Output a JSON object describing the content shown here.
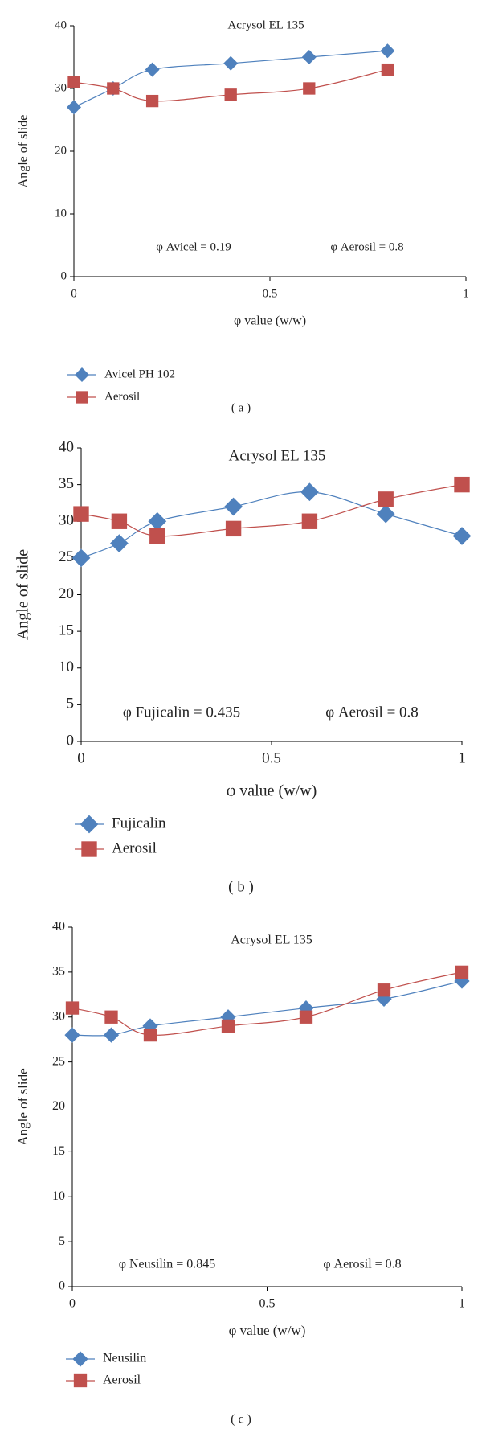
{
  "chart_data": [
    {
      "type": "line",
      "title": "Acrysol EL 135",
      "x_label": "φ value (w/w)",
      "y_label": "Angle of slide",
      "annotations": [
        "φ Avicel = 0.19",
        "φ Aerosil = 0.8"
      ],
      "caption": "( a )",
      "xlim": [
        0,
        1
      ],
      "xticks": [
        0,
        0.5,
        1
      ],
      "ylim": [
        0,
        40
      ],
      "yticks": [
        0,
        10,
        20,
        30,
        40
      ],
      "x": [
        0,
        0.1,
        0.2,
        0.4,
        0.6,
        0.8
      ],
      "series": [
        {
          "name": "Avicel PH 102",
          "color": "#4f81bd",
          "marker": "diamond",
          "values": [
            27,
            30,
            33,
            34,
            35,
            36
          ]
        },
        {
          "name": "Aerosil",
          "color": "#c0504d",
          "marker": "square",
          "values": [
            31,
            30,
            28,
            29,
            30,
            33
          ]
        }
      ]
    },
    {
      "type": "line",
      "title": "Acrysol EL 135",
      "x_label": "φ value (w/w)",
      "y_label": "Angle of slide",
      "annotations": [
        "φ Fujicalin = 0.435",
        "φ Aerosil = 0.8"
      ],
      "caption": "( b )",
      "xlim": [
        0,
        1
      ],
      "xticks": [
        0,
        0.5,
        1
      ],
      "ylim": [
        0,
        40
      ],
      "yticks": [
        0,
        5,
        10,
        15,
        20,
        25,
        30,
        35,
        40
      ],
      "x": [
        0,
        0.1,
        0.2,
        0.4,
        0.6,
        0.8,
        1
      ],
      "series": [
        {
          "name": "Fujicalin",
          "color": "#4f81bd",
          "marker": "diamond",
          "values": [
            25,
            27,
            30,
            32,
            34,
            31,
            28
          ]
        },
        {
          "name": "Aerosil",
          "color": "#c0504d",
          "marker": "square",
          "values": [
            31,
            30,
            28,
            29,
            30,
            33,
            35
          ]
        }
      ]
    },
    {
      "type": "line",
      "title": "Acrysol EL 135",
      "x_label": "φ value (w/w)",
      "y_label": "Angle of slide",
      "annotations": [
        "φ Neusilin = 0.845",
        "φ Aerosil = 0.8"
      ],
      "caption": "( c )",
      "xlim": [
        0,
        1
      ],
      "xticks": [
        0,
        0.5,
        1
      ],
      "ylim": [
        0,
        40
      ],
      "yticks": [
        0,
        5,
        10,
        15,
        20,
        25,
        30,
        35,
        40
      ],
      "x": [
        0,
        0.1,
        0.2,
        0.4,
        0.6,
        0.8,
        1
      ],
      "series": [
        {
          "name": "Neusilin",
          "color": "#4f81bd",
          "marker": "diamond",
          "values": [
            28,
            28,
            29,
            30,
            31,
            32,
            34
          ]
        },
        {
          "name": "Aerosil",
          "color": "#c0504d",
          "marker": "square",
          "values": [
            31,
            30,
            28,
            29,
            30,
            33,
            35
          ]
        }
      ]
    }
  ]
}
